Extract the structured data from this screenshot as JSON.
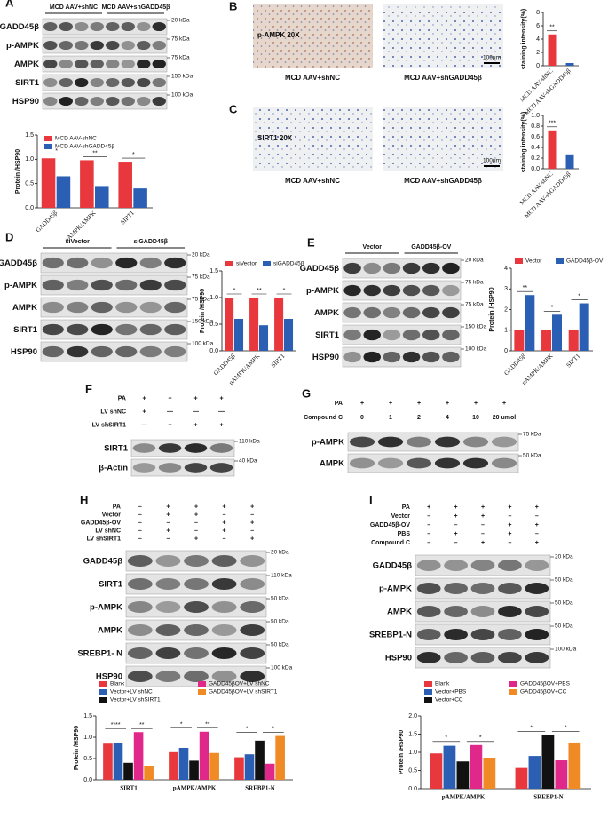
{
  "blots": [
    {
      "letter": "A",
      "lanes": 8,
      "groups": [
        "MCD AAV+shNC",
        "MCD AAV+shGADD45β"
      ],
      "conditions": [],
      "proteins": [
        {
          "name": "GADD45β",
          "kda": "20 kDa"
        },
        {
          "name": "p-AMPK",
          "kda": "75 kDa"
        },
        {
          "name": "AMPK",
          "kda": "75 kDa"
        },
        {
          "name": "SIRT1",
          "kda": "150 kDa"
        },
        {
          "name": "HSP90",
          "kda": "100 kDa"
        }
      ]
    },
    {
      "letter": "D",
      "lanes": 6,
      "groups": [
        "siVector",
        "siGADD45β"
      ],
      "conditions": [],
      "proteins": [
        {
          "name": "GADD45β",
          "kda": "20 kDa"
        },
        {
          "name": "p-AMPK",
          "kda": "75 kDa"
        },
        {
          "name": "AMPK",
          "kda": "75 kDa"
        },
        {
          "name": "SIRT1",
          "kda": "150 kDa"
        },
        {
          "name": "HSP90",
          "kda": "100 kDa"
        }
      ]
    },
    {
      "letter": "E",
      "lanes": 6,
      "groups": [
        "Vector",
        "GADD45β-OV"
      ],
      "conditions": [],
      "proteins": [
        {
          "name": "GADD45β",
          "kda": "20 kDa"
        },
        {
          "name": "p-AMPK",
          "kda": "75 kDa"
        },
        {
          "name": "AMPK",
          "kda": "75 kDa"
        },
        {
          "name": "SIRT1",
          "kda": "150 kDa"
        },
        {
          "name": "HSP90",
          "kda": "100 kDa"
        }
      ]
    },
    {
      "letter": "F",
      "lanes": 4,
      "groups": [],
      "conditions": [
        {
          "label": "PA",
          "values": [
            "+",
            "+",
            "+",
            "+"
          ]
        },
        {
          "label": "LV shNC",
          "values": [
            "+",
            "—",
            "—",
            "—"
          ]
        },
        {
          "label": "LV shSIRT1",
          "values": [
            "—",
            "+",
            "+",
            "+"
          ]
        }
      ],
      "proteins": [
        {
          "name": "SIRT1",
          "kda": "110 kDa"
        },
        {
          "name": "β-Actin",
          "kda": "40 kDa"
        }
      ]
    },
    {
      "letter": "G",
      "lanes": 6,
      "groups": [],
      "conditions": [
        {
          "label": "PA",
          "values": [
            "+",
            "+",
            "+",
            "+",
            "+",
            "+"
          ]
        },
        {
          "label": "Compound C",
          "values": [
            "0",
            "1",
            "2",
            "4",
            "10",
            "20 umol"
          ]
        }
      ],
      "proteins": [
        {
          "name": "p-AMPK",
          "kda": "75 kDa"
        },
        {
          "name": "AMPK",
          "kda": "50 kDa"
        }
      ]
    },
    {
      "letter": "H",
      "lanes": 5,
      "groups": [],
      "conditions": [
        {
          "label": "PA",
          "values": [
            "–",
            "+",
            "+",
            "+",
            "+"
          ]
        },
        {
          "label": "Vector",
          "values": [
            "–",
            "+",
            "+",
            "–",
            "–"
          ]
        },
        {
          "label": "GADD45β-OV",
          "values": [
            "–",
            "–",
            "–",
            "+",
            "+"
          ]
        },
        {
          "label": "LV shNC",
          "values": [
            "–",
            "+",
            "–",
            "+",
            "–"
          ]
        },
        {
          "label": "LV shSIRT1",
          "values": [
            "–",
            "–",
            "+",
            "–",
            "+"
          ]
        }
      ],
      "proteins": [
        {
          "name": "GADD45β",
          "kda": "20 kDa"
        },
        {
          "name": "SIRT1",
          "kda": "110 kDa"
        },
        {
          "name": "p-AMPK",
          "kda": "50 kDa"
        },
        {
          "name": "AMPK",
          "kda": "50 kDa"
        },
        {
          "name": "SREBP1- N",
          "kda": "50 kDa"
        },
        {
          "name": "HSP90",
          "kda": "100 kDa"
        }
      ]
    },
    {
      "letter": "I",
      "lanes": 5,
      "groups": [],
      "conditions": [
        {
          "label": "PA",
          "values": [
            "+",
            "+",
            "+",
            "+",
            "+"
          ]
        },
        {
          "label": "Vector",
          "values": [
            "–",
            "+",
            "+",
            "–",
            "–"
          ]
        },
        {
          "label": "GADD45β-OV",
          "values": [
            "–",
            "–",
            "–",
            "+",
            "+"
          ]
        },
        {
          "label": "PBS",
          "values": [
            "–",
            "+",
            "–",
            "+",
            "–"
          ]
        },
        {
          "label": "Compound C",
          "values": [
            "–",
            "–",
            "+",
            "–",
            "+"
          ]
        }
      ],
      "proteins": [
        {
          "name": "GADD45β",
          "kda": "20 kDa"
        },
        {
          "name": "p-AMPK",
          "kda": "50 kDa"
        },
        {
          "name": "AMPK",
          "kda": "50 kDa"
        },
        {
          "name": "SREBP1-N",
          "kda": "50 kDa"
        },
        {
          "name": "HSP90",
          "kda": "100 kDa"
        }
      ]
    }
  ],
  "images": [
    {
      "letter": "B",
      "stain": "p-AMPK 20X",
      "captions": [
        "MCD AAV+shNC",
        "MCD AAV+shGADD45β"
      ],
      "scale": "100μm"
    },
    {
      "letter": "C",
      "stain": "SIRT1 20X",
      "captions": [
        "MCD AAV+shNC",
        "MCD AAV+shGADD45β"
      ],
      "scale": "100μm"
    }
  ],
  "chart_data": [
    {
      "type": "bar",
      "y_label": "Protein /HSP90",
      "categories": [
        "GADD45β",
        "pAMPK/AMPK",
        "SIRT1"
      ],
      "rotated_x_labels": true,
      "legend": "upper left",
      "series": [
        {
          "name": "MCD AAV-shNC",
          "color": "#e8383d",
          "values": [
            1.02,
            0.98,
            0.95
          ]
        },
        {
          "name": "MCD AAV-shGADD45β",
          "color": "#2b5fb4",
          "values": [
            0.65,
            0.45,
            0.4
          ]
        }
      ],
      "ylim": [
        0,
        1.5
      ],
      "yticks": [
        {
          "value": 0,
          "label": "0.0"
        },
        {
          "value": 0.5,
          "label": "0.5"
        },
        {
          "value": 1,
          "label": "1.0"
        },
        {
          "value": 1.5,
          "label": "1.5"
        }
      ],
      "annotations": [
        "*",
        "**",
        "*"
      ]
    },
    {
      "type": "bar",
      "y_label": "staining intensity(%)",
      "categories": [
        "MCD AAV-shNC",
        "MCD AAV-shGADD45β"
      ],
      "rotated_x_labels": true,
      "values": [
        4.7,
        0.4
      ],
      "colors": [
        "#e8383d",
        "#2b5fb4"
      ],
      "ylim": [
        0,
        8
      ],
      "yticks": [
        0,
        2,
        4,
        6,
        8
      ],
      "annotations": [
        "**"
      ]
    },
    {
      "type": "bar",
      "y_label": "staining intensity(%)",
      "categories": [
        "MCD AAV-shNC",
        "MCD AAV-shGADD45β"
      ],
      "rotated_x_labels": true,
      "values": [
        0.72,
        0.27
      ],
      "colors": [
        "#e8383d",
        "#2b5fb4"
      ],
      "ylim": [
        0,
        1
      ],
      "yticks": [
        {
          "value": 0,
          "label": "0.0"
        },
        {
          "value": 0.2,
          "label": "0.2"
        },
        {
          "value": 0.4,
          "label": "0.4"
        },
        {
          "value": 0.6,
          "label": "0.6"
        },
        {
          "value": 0.8,
          "label": "0.8"
        },
        {
          "value": 1,
          "label": "1.0"
        }
      ],
      "annotations": [
        "***"
      ]
    },
    {
      "type": "bar",
      "y_label": "Protein /HSP90",
      "categories": [
        "GADD45β",
        "pAMPK/AMPK",
        "SIRT1"
      ],
      "rotated_x_labels": true,
      "legend": "top",
      "series": [
        {
          "name": "siVector",
          "color": "#e8383d",
          "values": [
            1.0,
            1.0,
            1.0
          ]
        },
        {
          "name": "siGADD45β",
          "color": "#2b5fb4",
          "values": [
            0.6,
            0.48,
            0.6
          ]
        }
      ],
      "ylim": [
        0,
        1.5
      ],
      "yticks": [
        {
          "value": 0,
          "label": "0.0"
        },
        {
          "value": 0.5,
          "label": "0.5"
        },
        {
          "value": 1,
          "label": "1.0"
        },
        {
          "value": 1.5,
          "label": "1.5"
        }
      ],
      "annotations": [
        "*",
        "**",
        "*"
      ]
    },
    {
      "type": "bar",
      "y_label": "Protein /HSP90",
      "categories": [
        "GADD45β",
        "pAMPK/AMPK",
        "SIRT1"
      ],
      "rotated_x_labels": true,
      "legend": "top",
      "series": [
        {
          "name": "Vector",
          "color": "#e8383d",
          "values": [
            1.0,
            1.0,
            1.0
          ]
        },
        {
          "name": "GADD45β-OV",
          "color": "#2b5fb4",
          "values": [
            2.7,
            1.75,
            2.3
          ]
        }
      ],
      "ylim": [
        0,
        4
      ],
      "yticks": [
        0,
        1,
        2,
        3,
        4
      ],
      "annotations": [
        "**",
        "*",
        "*"
      ]
    },
    {
      "type": "bar",
      "y_label": "Protein /HSP90",
      "categories": [
        "SIRT1",
        "pAMPK/AMPK",
        "SREBP1-N"
      ],
      "rotated_x_labels": false,
      "legend": "top",
      "series": [
        {
          "name": "Blank",
          "color": "#e8383d",
          "values": [
            0.85,
            0.65,
            0.53
          ]
        },
        {
          "name": "Vector+LV shNC",
          "color": "#2b5fb4",
          "values": [
            0.87,
            0.75,
            0.6
          ]
        },
        {
          "name": "Vector+LV shSIRT1",
          "color": "#111111",
          "values": [
            0.4,
            0.45,
            0.92
          ]
        },
        {
          "name": "GADD45βOV+LV shNC",
          "color": "#e0288a",
          "values": [
            1.12,
            1.13,
            0.38
          ]
        },
        {
          "name": "GADD45βOV+LV shSIRT1",
          "color": "#f08a24",
          "values": [
            0.33,
            0.63,
            1.03
          ]
        }
      ],
      "ylim": [
        0,
        1.5
      ],
      "yticks": [
        {
          "value": 0,
          "label": "0.0"
        },
        {
          "value": 0.5,
          "label": "0.5"
        },
        {
          "value": 1,
          "label": "1.0"
        },
        {
          "value": 1.5,
          "label": "1.5"
        }
      ],
      "annotations": [
        "****",
        "**",
        "*",
        "**",
        "*",
        "*"
      ]
    },
    {
      "type": "bar",
      "y_label": "Protein /HSP90",
      "categories": [
        "pAMPK/AMPK",
        "SREBP1-N"
      ],
      "rotated_x_labels": false,
      "legend": "top",
      "series": [
        {
          "name": "Blank",
          "color": "#e8383d",
          "values": [
            0.97,
            0.57
          ]
        },
        {
          "name": "Vector+PBS",
          "color": "#2b5fb4",
          "values": [
            1.18,
            0.9
          ]
        },
        {
          "name": "Vector+CC",
          "color": "#111111",
          "values": [
            0.75,
            1.47
          ]
        },
        {
          "name": "GADD45βOV+PBS",
          "color": "#e0288a",
          "values": [
            1.2,
            0.78
          ]
        },
        {
          "name": "GADD45βOV+CC",
          "color": "#f08a24",
          "values": [
            0.85,
            1.27
          ]
        }
      ],
      "ylim": [
        0,
        2
      ],
      "yticks": [
        {
          "value": 0,
          "label": "0.0"
        },
        {
          "value": 0.5,
          "label": "0.5"
        },
        {
          "value": 1,
          "label": "1.0"
        },
        {
          "value": 1.5,
          "label": "1.5"
        },
        {
          "value": 2,
          "label": "2.0"
        }
      ],
      "annotations": [
        "*",
        "*",
        "*",
        "*"
      ]
    }
  ]
}
